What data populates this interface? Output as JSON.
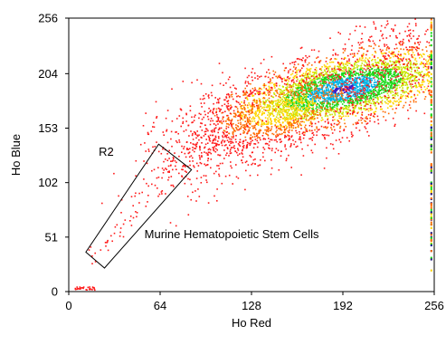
{
  "chart_data": {
    "type": "scatter",
    "title": "",
    "xlabel": "Ho Red",
    "ylabel": "Ho Blue",
    "xlim": [
      0,
      256
    ],
    "ylim": [
      0,
      256
    ],
    "x_ticks": [
      0,
      64,
      128,
      192,
      256
    ],
    "y_ticks": [
      0,
      51,
      102,
      153,
      204,
      256
    ],
    "grid": false,
    "density_colormap": [
      "#ff1a1a",
      "#ff6a00",
      "#ffd400",
      "#c8e600",
      "#19d919",
      "#00b4e6",
      "#3a1cc8"
    ],
    "clusters": [
      {
        "cx": 192,
        "cy": 190,
        "sx": 38,
        "sy": 14,
        "rotation_deg": 18,
        "density": "high"
      },
      {
        "cx": 150,
        "cy": 170,
        "sx": 42,
        "sy": 18,
        "rotation_deg": 25,
        "density": "medium"
      },
      {
        "cx": 100,
        "cy": 130,
        "sx": 30,
        "sy": 18,
        "rotation_deg": 40,
        "density": "low"
      },
      {
        "cx": 235,
        "cy": 225,
        "sx": 20,
        "sy": 20,
        "rotation_deg": 20,
        "density": "low"
      }
    ],
    "gate_R2": {
      "label": "R2",
      "vertices": [
        [
          12,
          37
        ],
        [
          63,
          138
        ],
        [
          86,
          114
        ],
        [
          25,
          22
        ]
      ]
    },
    "annotations": [
      {
        "text": "R2",
        "x": 21,
        "y": 127
      },
      {
        "text": "Murine Hematopoietic Stem Cells",
        "x": 53,
        "y": 50
      }
    ],
    "right_edge_stripe": {
      "x": 254,
      "colors": [
        "#19d919",
        "#ffd400",
        "#1a1a8c",
        "#ff6a00"
      ]
    }
  }
}
